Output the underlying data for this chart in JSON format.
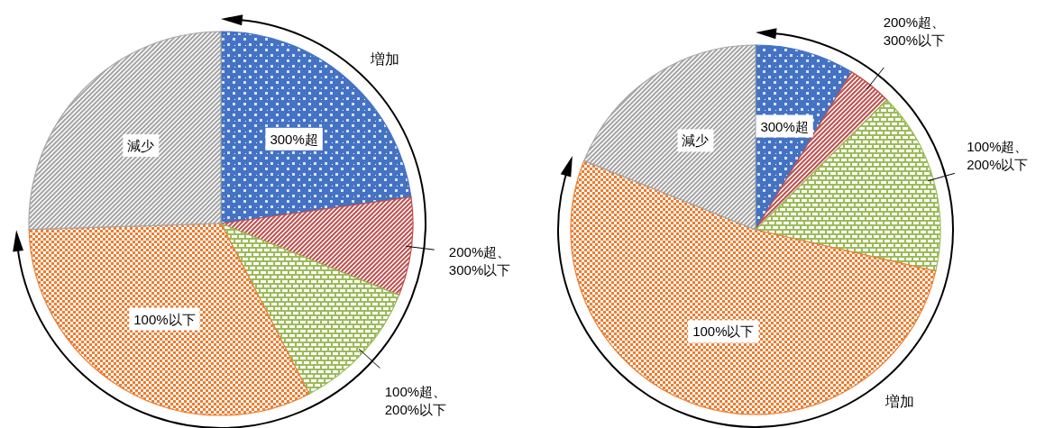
{
  "chart_data": [
    {
      "type": "pie",
      "categories": [
        "300%超",
        "200%超、300%以下",
        "100%超、200%以下",
        "100%以下",
        "減少"
      ],
      "values": [
        22.8,
        8.3,
        11.3,
        32.1,
        25.5
      ],
      "colors": [
        "#4472c4",
        "#c0504d",
        "#9bbb59",
        "#ed7d31",
        "#a5a5a5"
      ],
      "annotations": [
        "増加"
      ]
    },
    {
      "type": "pie",
      "categories": [
        "300%超",
        "200%超、300%以下",
        "100%超、200%以下",
        "100%以下",
        "減少"
      ],
      "values": [
        8.7,
        3.9,
        16.0,
        52.5,
        18.9
      ],
      "colors": [
        "#4472c4",
        "#c0504d",
        "#9bbb59",
        "#ed7d31",
        "#a5a5a5"
      ],
      "annotations": [
        "増加"
      ]
    }
  ]
}
